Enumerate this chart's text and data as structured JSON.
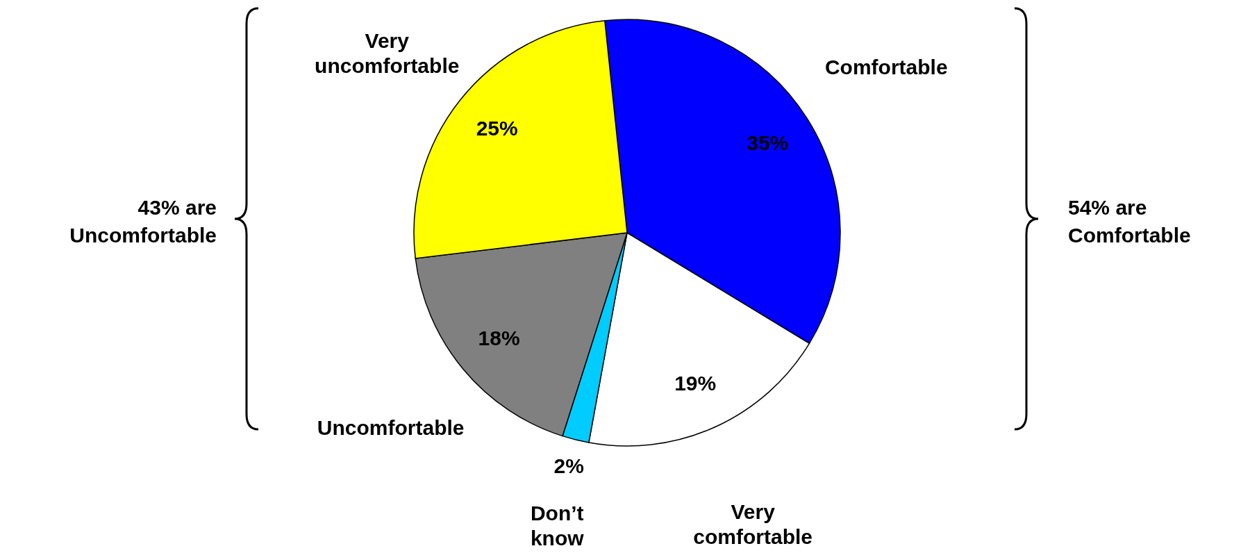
{
  "chart_data": {
    "type": "pie",
    "categories": [
      "Comfortable",
      "Very comfortable",
      "Don’t know",
      "Uncomfortable",
      "Very uncomfortable"
    ],
    "values": [
      35,
      19,
      2,
      18,
      25
    ],
    "colors": [
      "#0000ff",
      "#ffffff",
      "#00ccff",
      "#808080",
      "#ffff00"
    ],
    "value_labels": [
      "35%",
      "19%",
      "2%",
      "18%",
      "25%"
    ],
    "annotations": [
      "43% are Uncomfortable",
      "54% are Comfortable"
    ]
  }
}
